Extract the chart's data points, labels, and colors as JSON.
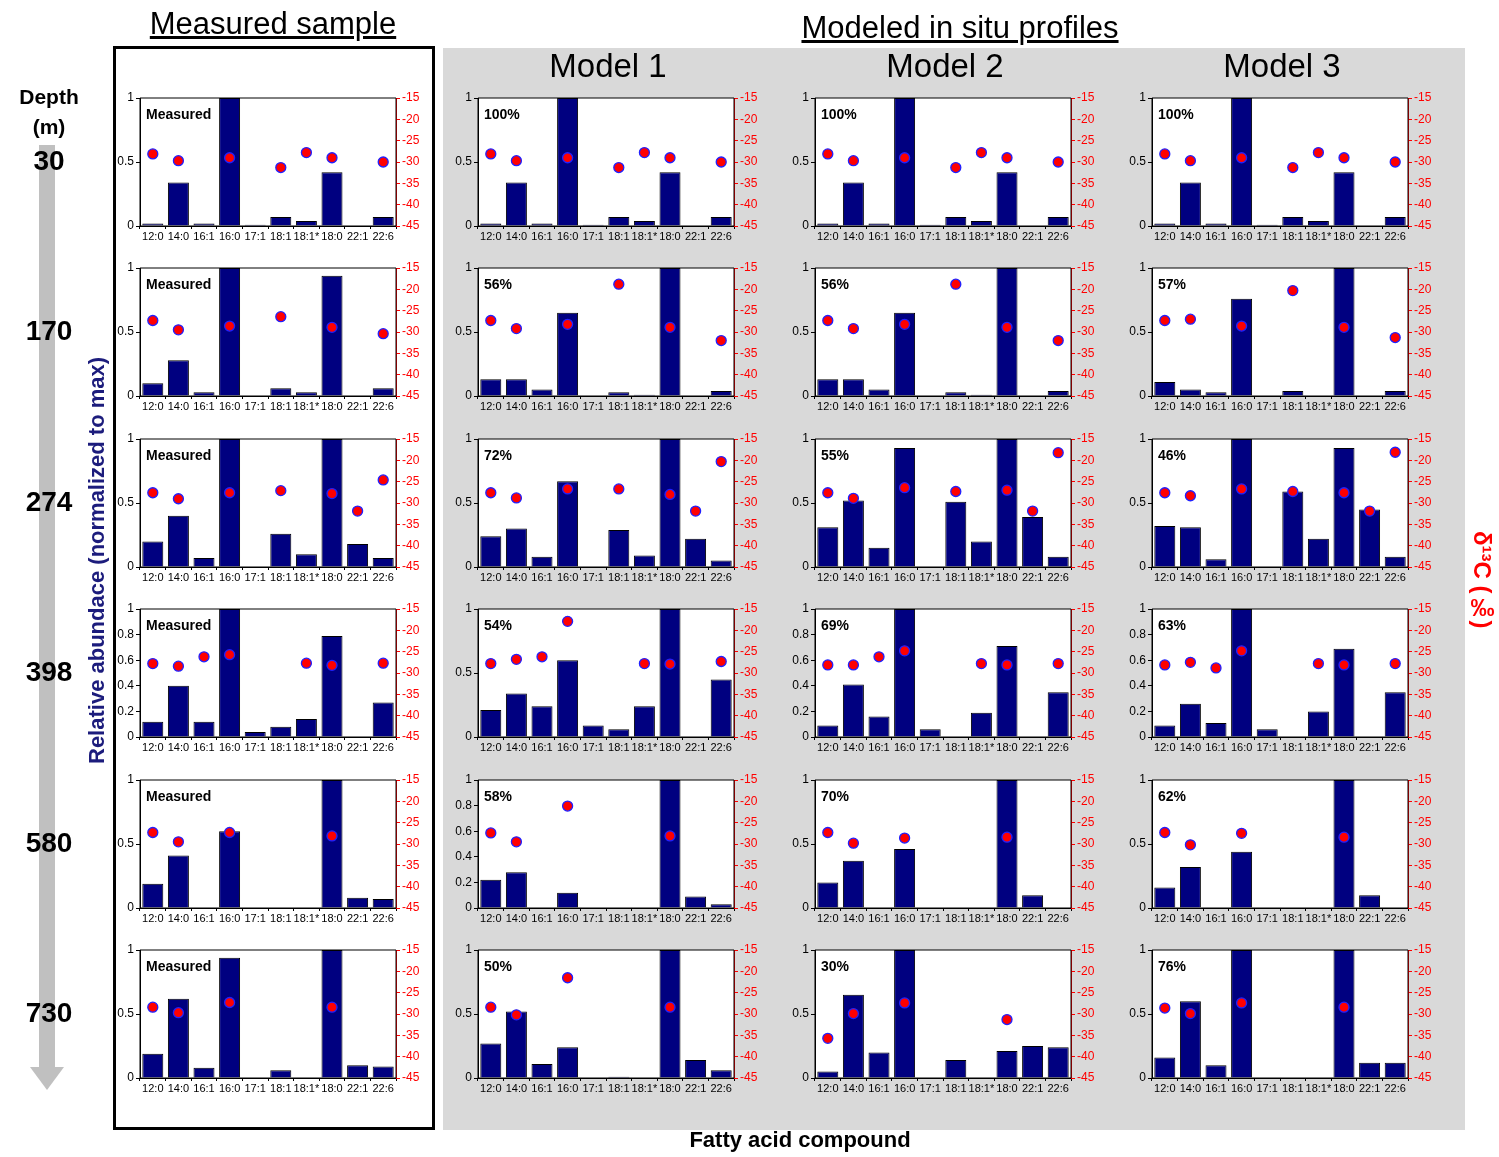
{
  "chart_data": [
    {
      "type": "bar",
      "title": "Measured sample",
      "annotations": [
        "Measured"
      ],
      "categories": [
        "12:0",
        "14:0",
        "16:1",
        "16:0",
        "17:1",
        "18:1",
        "18:1*",
        "18:0",
        "22:1",
        "22:6"
      ],
      "ylim": [
        0,
        1
      ],
      "yticks": [
        0,
        0.5,
        1
      ],
      "y2lim": [
        -45,
        -15
      ],
      "y2ticks": [
        -45,
        -40,
        -35,
        -30,
        -25,
        -20,
        -15
      ],
      "marker": "circle",
      "series": [
        {
          "type": "bar",
          "color": "#000080",
          "values": [
            0.02,
            0.34,
            0.02,
            1,
            0.01,
            0.07,
            0.04,
            0.42,
            0,
            0.07
          ]
        },
        {
          "type": "scatter",
          "axis": "y2",
          "color": "#ff0000",
          "values": [
            -28.1,
            -29.7,
            null,
            -29.0,
            null,
            -31.3,
            -27.8,
            -29.0,
            null,
            -30.0
          ]
        }
      ]
    },
    {
      "type": "bar",
      "title": "Model 1",
      "annotations": [
        "100%"
      ],
      "categories": [
        "12:0",
        "14:0",
        "16:1",
        "16:0",
        "17:1",
        "18:1",
        "18:1*",
        "18:0",
        "22:1",
        "22:6"
      ],
      "ylim": [
        0,
        1
      ],
      "yticks": [
        0,
        0.5,
        1
      ],
      "y2lim": [
        -45,
        -15
      ],
      "y2ticks": [
        -45,
        -40,
        -35,
        -30,
        -25,
        -20,
        -15
      ],
      "marker": "circle",
      "series": [
        {
          "type": "bar",
          "color": "#000080",
          "values": [
            0.02,
            0.34,
            0.02,
            1,
            0.01,
            0.07,
            0.04,
            0.42,
            0,
            0.07
          ]
        },
        {
          "type": "scatter",
          "axis": "y2",
          "color": "#ff0000",
          "values": [
            -28.1,
            -29.7,
            null,
            -29.0,
            null,
            -31.3,
            -27.8,
            -29.0,
            null,
            -30.0
          ]
        }
      ]
    },
    {
      "type": "bar",
      "title": "Model 2",
      "annotations": [
        "100%"
      ],
      "categories": [
        "12:0",
        "14:0",
        "16:1",
        "16:0",
        "17:1",
        "18:1",
        "18:1*",
        "18:0",
        "22:1",
        "22:6"
      ],
      "ylim": [
        0,
        1
      ],
      "yticks": [
        0,
        0.5,
        1
      ],
      "y2lim": [
        -45,
        -15
      ],
      "y2ticks": [
        -45,
        -40,
        -35,
        -30,
        -25,
        -20,
        -15
      ],
      "marker": "circle",
      "series": [
        {
          "type": "bar",
          "color": "#000080",
          "values": [
            0.02,
            0.34,
            0.02,
            1,
            0.01,
            0.07,
            0.04,
            0.42,
            0,
            0.07
          ]
        },
        {
          "type": "scatter",
          "axis": "y2",
          "color": "#ff0000",
          "values": [
            -28.1,
            -29.7,
            null,
            -29.0,
            null,
            -31.3,
            -27.8,
            -29.0,
            null,
            -30.0
          ]
        }
      ]
    },
    {
      "type": "bar",
      "title": "Model 3",
      "annotations": [
        "100%"
      ],
      "categories": [
        "12:0",
        "14:0",
        "16:1",
        "16:0",
        "17:1",
        "18:1",
        "18:1*",
        "18:0",
        "22:1",
        "22:6"
      ],
      "ylim": [
        0,
        1
      ],
      "yticks": [
        0,
        0.5,
        1
      ],
      "y2lim": [
        -45,
        -15
      ],
      "y2ticks": [
        -45,
        -40,
        -35,
        -30,
        -25,
        -20,
        -15
      ],
      "marker": "circle",
      "series": [
        {
          "type": "bar",
          "color": "#000080",
          "values": [
            0.02,
            0.34,
            0.02,
            1,
            0.01,
            0.07,
            0.04,
            0.42,
            0,
            0.07
          ]
        },
        {
          "type": "scatter",
          "axis": "y2",
          "color": "#ff0000",
          "values": [
            -28.1,
            -29.7,
            null,
            -29.0,
            null,
            -31.3,
            -27.8,
            -29.0,
            null,
            -30.0
          ]
        }
      ]
    },
    {
      "type": "bar",
      "annotations": [
        "Measured"
      ],
      "categories": [
        "12:0",
        "14:0",
        "16:1",
        "16:0",
        "17:1",
        "18:1",
        "18:1*",
        "18:0",
        "22:1",
        "22:6"
      ],
      "ylim": [
        0,
        1
      ],
      "yticks": [
        0,
        0.5,
        1
      ],
      "y2lim": [
        -45,
        -15
      ],
      "y2ticks": [
        -45,
        -40,
        -35,
        -30,
        -25,
        -20,
        -15
      ],
      "marker": "circle",
      "series": [
        {
          "type": "bar",
          "color": "#000080",
          "values": [
            0.1,
            0.28,
            0.03,
            1,
            0,
            0.06,
            0.03,
            0.94,
            0,
            0.06
          ]
        },
        {
          "type": "scatter",
          "axis": "y2",
          "color": "#ff0000",
          "values": [
            -27.3,
            -29.5,
            null,
            -28.6,
            null,
            -26.4,
            null,
            -28.9,
            null,
            -30.4
          ]
        }
      ]
    },
    {
      "type": "bar",
      "annotations": [
        "56%"
      ],
      "categories": [
        "12:0",
        "14:0",
        "16:1",
        "16:0",
        "17:1",
        "18:1",
        "18:1*",
        "18:0",
        "22:1",
        "22:6"
      ],
      "ylim": [
        0,
        1
      ],
      "yticks": [
        0,
        0.5,
        1
      ],
      "y2lim": [
        -45,
        -15
      ],
      "y2ticks": [
        -45,
        -40,
        -35,
        -30,
        -25,
        -20,
        -15
      ],
      "marker": "circle",
      "series": [
        {
          "type": "bar",
          "color": "#000080",
          "values": [
            0.13,
            0.13,
            0.05,
            0.65,
            0,
            0.03,
            0.01,
            1,
            0,
            0.04
          ]
        },
        {
          "type": "scatter",
          "axis": "y2",
          "color": "#ff0000",
          "values": [
            -27.3,
            -29.2,
            null,
            -28.2,
            null,
            -18.8,
            null,
            -28.9,
            null,
            -32.0
          ]
        }
      ]
    },
    {
      "type": "bar",
      "annotations": [
        "56%"
      ],
      "categories": [
        "12:0",
        "14:0",
        "16:1",
        "16:0",
        "17:1",
        "18:1",
        "18:1*",
        "18:0",
        "22:1",
        "22:6"
      ],
      "ylim": [
        0,
        1
      ],
      "yticks": [
        0,
        0.5,
        1
      ],
      "y2lim": [
        -45,
        -15
      ],
      "y2ticks": [
        -45,
        -40,
        -35,
        -30,
        -25,
        -20,
        -15
      ],
      "marker": "circle",
      "series": [
        {
          "type": "bar",
          "color": "#000080",
          "values": [
            0.13,
            0.13,
            0.05,
            0.65,
            0,
            0.03,
            0.01,
            1,
            0,
            0.04
          ]
        },
        {
          "type": "scatter",
          "axis": "y2",
          "color": "#ff0000",
          "values": [
            -27.3,
            -29.2,
            null,
            -28.2,
            null,
            -18.8,
            null,
            -28.9,
            null,
            -32.0
          ]
        }
      ]
    },
    {
      "type": "bar",
      "annotations": [
        "57%"
      ],
      "categories": [
        "12:0",
        "14:0",
        "16:1",
        "16:0",
        "17:1",
        "18:1",
        "18:1*",
        "18:0",
        "22:1",
        "22:6"
      ],
      "ylim": [
        0,
        1
      ],
      "yticks": [
        0,
        0.5,
        1
      ],
      "y2lim": [
        -45,
        -15
      ],
      "y2ticks": [
        -45,
        -40,
        -35,
        -30,
        -25,
        -20,
        -15
      ],
      "marker": "circle",
      "series": [
        {
          "type": "bar",
          "color": "#000080",
          "values": [
            0.11,
            0.05,
            0.03,
            0.76,
            0,
            0.04,
            0,
            1,
            0,
            0.04
          ]
        },
        {
          "type": "scatter",
          "axis": "y2",
          "color": "#ff0000",
          "values": [
            -27.3,
            -27.0,
            null,
            -28.6,
            null,
            -20.3,
            null,
            -28.9,
            null,
            -31.3
          ]
        }
      ]
    },
    {
      "type": "bar",
      "annotations": [
        "Measured"
      ],
      "categories": [
        "12:0",
        "14:0",
        "16:1",
        "16:0",
        "17:1",
        "18:1",
        "18:1*",
        "18:0",
        "22:1",
        "22:6"
      ],
      "ylim": [
        0,
        1
      ],
      "yticks": [
        0,
        0.5,
        1
      ],
      "y2lim": [
        -45,
        -15
      ],
      "y2ticks": [
        -45,
        -40,
        -35,
        -30,
        -25,
        -20,
        -15
      ],
      "marker": "circle",
      "series": [
        {
          "type": "bar",
          "color": "#000080",
          "values": [
            0.2,
            0.4,
            0.07,
            1,
            0,
            0.26,
            0.1,
            1,
            0.18,
            0.07
          ]
        },
        {
          "type": "scatter",
          "axis": "y2",
          "color": "#ff0000",
          "values": [
            -27.6,
            -29.0,
            null,
            -27.6,
            null,
            -27.1,
            null,
            -27.8,
            -31.9,
            -24.6
          ]
        }
      ]
    },
    {
      "type": "bar",
      "annotations": [
        "72%"
      ],
      "categories": [
        "12:0",
        "14:0",
        "16:1",
        "16:0",
        "17:1",
        "18:1",
        "18:1*",
        "18:0",
        "22:1",
        "22:6"
      ],
      "ylim": [
        0,
        1
      ],
      "yticks": [
        0,
        0.5,
        1
      ],
      "y2lim": [
        -45,
        -15
      ],
      "y2ticks": [
        -45,
        -40,
        -35,
        -30,
        -25,
        -20,
        -15
      ],
      "marker": "circle",
      "series": [
        {
          "type": "bar",
          "color": "#000080",
          "values": [
            0.24,
            0.3,
            0.08,
            0.67,
            0,
            0.29,
            0.09,
            1,
            0.22,
            0.05
          ]
        },
        {
          "type": "scatter",
          "axis": "y2",
          "color": "#ff0000",
          "values": [
            -27.6,
            -28.8,
            null,
            -26.7,
            null,
            -26.7,
            null,
            -28.0,
            -31.9,
            -20.3
          ]
        }
      ]
    },
    {
      "type": "bar",
      "annotations": [
        "55%"
      ],
      "categories": [
        "12:0",
        "14:0",
        "16:1",
        "16:0",
        "17:1",
        "18:1",
        "18:1*",
        "18:0",
        "22:1",
        "22:6"
      ],
      "ylim": [
        0,
        1
      ],
      "yticks": [
        0,
        0.5,
        1
      ],
      "y2lim": [
        -45,
        -15
      ],
      "y2ticks": [
        -45,
        -40,
        -35,
        -30,
        -25,
        -20,
        -15
      ],
      "marker": "circle",
      "series": [
        {
          "type": "bar",
          "color": "#000080",
          "values": [
            0.31,
            0.52,
            0.15,
            0.93,
            0,
            0.51,
            0.2,
            1,
            0.39,
            0.08
          ]
        },
        {
          "type": "scatter",
          "axis": "y2",
          "color": "#ff0000",
          "values": [
            -27.6,
            -28.9,
            null,
            -26.4,
            null,
            -27.3,
            null,
            -27.0,
            -31.9,
            -18.2
          ]
        }
      ]
    },
    {
      "type": "bar",
      "annotations": [
        "46%"
      ],
      "categories": [
        "12:0",
        "14:0",
        "16:1",
        "16:0",
        "17:1",
        "18:1",
        "18:1*",
        "18:0",
        "22:1",
        "22:6"
      ],
      "ylim": [
        0,
        1
      ],
      "yticks": [
        0,
        0.5,
        1
      ],
      "y2lim": [
        -45,
        -15
      ],
      "y2ticks": [
        -45,
        -40,
        -35,
        -30,
        -25,
        -20,
        -15
      ],
      "marker": "circle",
      "series": [
        {
          "type": "bar",
          "color": "#000080",
          "values": [
            0.32,
            0.31,
            0.06,
            1,
            0,
            0.59,
            0.22,
            0.93,
            0.45,
            0.08
          ]
        },
        {
          "type": "scatter",
          "axis": "y2",
          "color": "#ff0000",
          "values": [
            -27.6,
            -28.3,
            null,
            -26.7,
            null,
            -27.3,
            null,
            -27.6,
            -31.9,
            -18.1
          ]
        }
      ]
    },
    {
      "type": "bar",
      "annotations": [
        "Measured"
      ],
      "categories": [
        "12:0",
        "14:0",
        "16:1",
        "16:0",
        "17:1",
        "18:1",
        "18:1*",
        "18:0",
        "22:1",
        "22:6"
      ],
      "ylim": [
        0,
        1
      ],
      "yticks": [
        0,
        0.2,
        0.4,
        0.6,
        0.8,
        1
      ],
      "y2lim": [
        -45,
        -15
      ],
      "y2ticks": [
        -45,
        -40,
        -35,
        -30,
        -25,
        -20,
        -15
      ],
      "marker": "circle",
      "series": [
        {
          "type": "bar",
          "color": "#000080",
          "values": [
            0.12,
            0.4,
            0.12,
            1,
            0.04,
            0.08,
            0.14,
            0.79,
            0,
            0.27
          ]
        },
        {
          "type": "scatter",
          "axis": "y2",
          "color": "#ff0000",
          "values": [
            -27.8,
            -28.4,
            -26.2,
            -25.7,
            null,
            null,
            -27.7,
            -28.2,
            null,
            -27.7
          ]
        }
      ]
    },
    {
      "type": "bar",
      "annotations": [
        "54%"
      ],
      "categories": [
        "12:0",
        "14:0",
        "16:1",
        "16:0",
        "17:1",
        "18:1",
        "18:1*",
        "18:0",
        "22:1",
        "22:6"
      ],
      "ylim": [
        0,
        1
      ],
      "yticks": [
        0,
        0.5,
        1
      ],
      "y2lim": [
        -45,
        -15
      ],
      "y2ticks": [
        -45,
        -40,
        -35,
        -30,
        -25,
        -20,
        -15
      ],
      "marker": "circle",
      "series": [
        {
          "type": "bar",
          "color": "#000080",
          "values": [
            0.21,
            0.34,
            0.24,
            0.6,
            0.09,
            0.06,
            0.24,
            1,
            0,
            0.45
          ]
        },
        {
          "type": "scatter",
          "axis": "y2",
          "color": "#ff0000",
          "values": [
            -27.8,
            -26.8,
            -26.2,
            -17.9,
            null,
            null,
            -27.8,
            -27.9,
            null,
            -27.3
          ]
        }
      ]
    },
    {
      "type": "bar",
      "annotations": [
        "69%"
      ],
      "categories": [
        "12:0",
        "14:0",
        "16:1",
        "16:0",
        "17:1",
        "18:1",
        "18:1*",
        "18:0",
        "22:1",
        "22:6"
      ],
      "ylim": [
        0,
        1
      ],
      "yticks": [
        0,
        0.2,
        0.4,
        0.6,
        0.8,
        1
      ],
      "y2lim": [
        -45,
        -15
      ],
      "y2ticks": [
        -45,
        -40,
        -35,
        -30,
        -25,
        -20,
        -15
      ],
      "marker": "circle",
      "series": [
        {
          "type": "bar",
          "color": "#000080",
          "values": [
            0.09,
            0.41,
            0.16,
            1,
            0.06,
            0,
            0.19,
            0.71,
            0,
            0.35
          ]
        },
        {
          "type": "scatter",
          "axis": "y2",
          "color": "#ff0000",
          "values": [
            -28.1,
            -28.1,
            -26.2,
            -24.8,
            null,
            null,
            -27.8,
            -28.1,
            null,
            -27.8
          ]
        }
      ]
    },
    {
      "type": "bar",
      "annotations": [
        "63%"
      ],
      "categories": [
        "12:0",
        "14:0",
        "16:1",
        "16:0",
        "17:1",
        "18:1",
        "18:1*",
        "18:0",
        "22:1",
        "22:6"
      ],
      "ylim": [
        0,
        1
      ],
      "yticks": [
        0,
        0.2,
        0.4,
        0.6,
        0.8,
        1
      ],
      "y2lim": [
        -45,
        -15
      ],
      "y2ticks": [
        -45,
        -40,
        -35,
        -30,
        -25,
        -20,
        -15
      ],
      "marker": "circle",
      "series": [
        {
          "type": "bar",
          "color": "#000080",
          "values": [
            0.09,
            0.26,
            0.11,
            1,
            0.06,
            0,
            0.2,
            0.69,
            0,
            0.35
          ]
        },
        {
          "type": "scatter",
          "axis": "y2",
          "color": "#ff0000",
          "values": [
            -28.1,
            -27.5,
            -28.8,
            -24.8,
            null,
            null,
            -27.8,
            -28.1,
            null,
            -27.8
          ]
        }
      ]
    },
    {
      "type": "bar",
      "annotations": [
        "Measured"
      ],
      "categories": [
        "12:0",
        "14:0",
        "16:1",
        "16:0",
        "17:1",
        "18:1",
        "18:1*",
        "18:0",
        "22:1",
        "22:6"
      ],
      "ylim": [
        0,
        1
      ],
      "yticks": [
        0,
        0.5,
        1
      ],
      "y2lim": [
        -45,
        -15
      ],
      "y2ticks": [
        -45,
        -40,
        -35,
        -30,
        -25,
        -20,
        -15
      ],
      "marker": "circle",
      "series": [
        {
          "type": "bar",
          "color": "#000080",
          "values": [
            0.19,
            0.41,
            0,
            0.6,
            0,
            0,
            0,
            1,
            0.08,
            0.07
          ]
        },
        {
          "type": "scatter",
          "axis": "y2",
          "color": "#ff0000",
          "values": [
            -27.3,
            -29.5,
            null,
            -27.3,
            null,
            null,
            null,
            -28.1,
            null,
            null
          ]
        }
      ]
    },
    {
      "type": "bar",
      "annotations": [
        "58%"
      ],
      "categories": [
        "12:0",
        "14:0",
        "16:1",
        "16:0",
        "17:1",
        "18:1",
        "18:1*",
        "18:0",
        "22:1",
        "22:6"
      ],
      "ylim": [
        0,
        1
      ],
      "yticks": [
        0,
        0.2,
        0.4,
        0.6,
        0.8,
        1
      ],
      "y2lim": [
        -45,
        -15
      ],
      "y2ticks": [
        -45,
        -40,
        -35,
        -30,
        -25,
        -20,
        -15
      ],
      "marker": "circle",
      "series": [
        {
          "type": "bar",
          "color": "#000080",
          "values": [
            0.22,
            0.28,
            0,
            0.12,
            0,
            0,
            0,
            1,
            0.09,
            0.03
          ]
        },
        {
          "type": "scatter",
          "axis": "y2",
          "color": "#ff0000",
          "values": [
            -27.4,
            -29.5,
            null,
            -21.1,
            null,
            null,
            null,
            -28.1,
            null,
            null
          ]
        }
      ]
    },
    {
      "type": "bar",
      "annotations": [
        "70%"
      ],
      "categories": [
        "12:0",
        "14:0",
        "16:1",
        "16:0",
        "17:1",
        "18:1",
        "18:1*",
        "18:0",
        "22:1",
        "22:6"
      ],
      "ylim": [
        0,
        1
      ],
      "yticks": [
        0,
        0.5,
        1
      ],
      "y2lim": [
        -45,
        -15
      ],
      "y2ticks": [
        -45,
        -40,
        -35,
        -30,
        -25,
        -20,
        -15
      ],
      "marker": "circle",
      "series": [
        {
          "type": "bar",
          "color": "#000080",
          "values": [
            0.2,
            0.37,
            0,
            0.46,
            0,
            0,
            0,
            1,
            0.1,
            0
          ]
        },
        {
          "type": "scatter",
          "axis": "y2",
          "color": "#ff0000",
          "values": [
            -27.3,
            -29.8,
            null,
            -28.6,
            null,
            null,
            null,
            -28.4,
            null,
            null
          ]
        }
      ]
    },
    {
      "type": "bar",
      "annotations": [
        "62%"
      ],
      "categories": [
        "12:0",
        "14:0",
        "16:1",
        "16:0",
        "17:1",
        "18:1",
        "18:1*",
        "18:0",
        "22:1",
        "22:6"
      ],
      "ylim": [
        0,
        1
      ],
      "yticks": [
        0,
        0.5,
        1
      ],
      "y2lim": [
        -45,
        -15
      ],
      "y2ticks": [
        -45,
        -40,
        -35,
        -30,
        -25,
        -20,
        -15
      ],
      "marker": "circle",
      "series": [
        {
          "type": "bar",
          "color": "#000080",
          "values": [
            0.16,
            0.32,
            0,
            0.44,
            0,
            0,
            0,
            1,
            0.1,
            0
          ]
        },
        {
          "type": "scatter",
          "axis": "y2",
          "color": "#ff0000",
          "values": [
            -27.3,
            -30.2,
            null,
            -27.5,
            null,
            null,
            null,
            -28.4,
            null,
            null
          ]
        }
      ]
    },
    {
      "type": "bar",
      "annotations": [
        "Measured"
      ],
      "categories": [
        "12:0",
        "14:0",
        "16:1",
        "16:0",
        "17:1",
        "18:1",
        "18:1*",
        "18:0",
        "22:1",
        "22:6"
      ],
      "ylim": [
        0,
        1
      ],
      "yticks": [
        0,
        0.5,
        1
      ],
      "y2lim": [
        -45,
        -15
      ],
      "y2ticks": [
        -45,
        -40,
        -35,
        -30,
        -25,
        -20,
        -15
      ],
      "marker": "circle",
      "series": [
        {
          "type": "bar",
          "color": "#000080",
          "values": [
            0.19,
            0.62,
            0.08,
            0.94,
            0,
            0.06,
            0,
            1,
            0.1,
            0.09
          ]
        },
        {
          "type": "scatter",
          "axis": "y2",
          "color": "#ff0000",
          "values": [
            -28.4,
            -29.7,
            null,
            -27.3,
            null,
            null,
            null,
            -28.4,
            null,
            null
          ]
        }
      ]
    },
    {
      "type": "bar",
      "annotations": [
        "50%"
      ],
      "categories": [
        "12:0",
        "14:0",
        "16:1",
        "16:0",
        "17:1",
        "18:1",
        "18:1*",
        "18:0",
        "22:1",
        "22:6"
      ],
      "ylim": [
        0,
        1
      ],
      "yticks": [
        0,
        0.5,
        1
      ],
      "y2lim": [
        -45,
        -15
      ],
      "y2ticks": [
        -45,
        -40,
        -35,
        -30,
        -25,
        -20,
        -15
      ],
      "marker": "circle",
      "series": [
        {
          "type": "bar",
          "color": "#000080",
          "values": [
            0.27,
            0.52,
            0.11,
            0.24,
            0,
            0.01,
            0,
            1,
            0.14,
            0.06
          ]
        },
        {
          "type": "scatter",
          "axis": "y2",
          "color": "#ff0000",
          "values": [
            -28.4,
            -30.2,
            null,
            -21.5,
            null,
            null,
            null,
            -28.4,
            null,
            null
          ]
        }
      ]
    },
    {
      "type": "bar",
      "annotations": [
        "30%"
      ],
      "categories": [
        "12:0",
        "14:0",
        "16:1",
        "16:0",
        "17:1",
        "18:1",
        "18:1*",
        "18:0",
        "22:1",
        "22:6"
      ],
      "ylim": [
        0,
        1
      ],
      "yticks": [
        0,
        0.5,
        1
      ],
      "y2lim": [
        -45,
        -15
      ],
      "y2ticks": [
        -45,
        -40,
        -35,
        -30,
        -25,
        -20,
        -15
      ],
      "marker": "circle",
      "series": [
        {
          "type": "bar",
          "color": "#000080",
          "values": [
            0.05,
            0.65,
            0.2,
            1,
            0,
            0.14,
            0,
            0.21,
            0.25,
            0.24
          ]
        },
        {
          "type": "scatter",
          "axis": "y2",
          "color": "#ff0000",
          "values": [
            -35.7,
            -29.9,
            null,
            -27.4,
            null,
            null,
            null,
            -31.3,
            null,
            null
          ]
        }
      ]
    },
    {
      "type": "bar",
      "annotations": [
        "76%"
      ],
      "categories": [
        "12:0",
        "14:0",
        "16:1",
        "16:0",
        "17:1",
        "18:1",
        "18:1*",
        "18:0",
        "22:1",
        "22:6"
      ],
      "ylim": [
        0,
        1
      ],
      "yticks": [
        0,
        0.5,
        1
      ],
      "y2lim": [
        -45,
        -15
      ],
      "y2ticks": [
        -45,
        -40,
        -35,
        -30,
        -25,
        -20,
        -15
      ],
      "marker": "circle",
      "series": [
        {
          "type": "bar",
          "color": "#000080",
          "values": [
            0.16,
            0.6,
            0.1,
            1,
            0,
            0,
            0,
            1,
            0.12,
            0.12
          ]
        },
        {
          "type": "scatter",
          "axis": "y2",
          "color": "#ff0000",
          "values": [
            -28.6,
            -29.9,
            null,
            -27.4,
            null,
            null,
            null,
            -28.4,
            null,
            null
          ]
        }
      ]
    },
    {
      "type": "other",
      "title": "Modeled in situ profiles",
      "ylabel": "Relative abundace (normalized to max)",
      "y2label": "δ¹³C (‰)",
      "xlabel": "Fatty acid compound",
      "annotations": [
        "Depth (m)",
        "30",
        "170",
        "274",
        "398",
        "580",
        "730"
      ]
    }
  ]
}
